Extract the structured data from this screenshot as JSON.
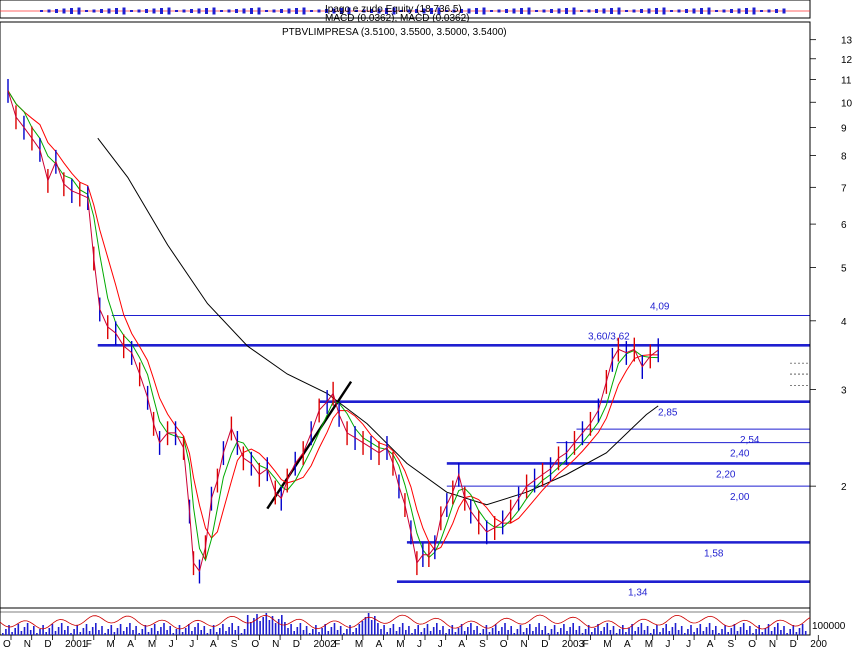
{
  "header": {
    "top_label": "Ipago e zudo Equity (18.736.5)",
    "macd_label": "MACD (0.0362), MACD (0.0362)",
    "ticker_label": "PTBVLIMPRESA (3.5100, 3.5500, 3.5000, 3.5400)"
  },
  "chart_data": {
    "type": "line",
    "title": "PTBVLIMPRESA (3.5100, 3.5500, 3.5000, 3.5400)",
    "y_scale": "log",
    "ylim": [
      1.2,
      14
    ],
    "x_start": "2000-10",
    "x_end": "2004-01",
    "y_ticks": [
      "13",
      "12",
      "11",
      "10",
      "9",
      "8",
      "7",
      "6",
      "5",
      "4",
      "3",
      "2"
    ],
    "x_ticks": [
      "O",
      "N",
      "D",
      "2001",
      "F",
      "M",
      "A",
      "M",
      "J",
      "J",
      "A",
      "S",
      "O",
      "N",
      "D",
      "2002",
      "F",
      "M",
      "A",
      "M",
      "J",
      "J",
      "A",
      "S",
      "O",
      "N",
      "D",
      "2003",
      "F",
      "M",
      "A",
      "M",
      "J",
      "J",
      "A",
      "S",
      "O",
      "N",
      "D",
      "200"
    ],
    "volume_label": "100000",
    "price": [
      [
        0,
        10.5
      ],
      [
        0.4,
        9.4
      ],
      [
        0.8,
        9.0
      ],
      [
        1.2,
        8.6
      ],
      [
        1.6,
        8.2
      ],
      [
        2.0,
        7.2
      ],
      [
        2.4,
        7.8
      ],
      [
        2.8,
        7.1
      ],
      [
        3.2,
        6.9
      ],
      [
        3.6,
        6.8
      ],
      [
        4.0,
        6.7
      ],
      [
        4.3,
        5.2
      ],
      [
        4.6,
        4.2
      ],
      [
        5.0,
        3.9
      ],
      [
        5.4,
        3.8
      ],
      [
        5.8,
        3.6
      ],
      [
        6.2,
        3.5
      ],
      [
        6.6,
        3.2
      ],
      [
        7.0,
        2.9
      ],
      [
        7.3,
        2.6
      ],
      [
        7.6,
        2.4
      ],
      [
        8.0,
        2.5
      ],
      [
        8.4,
        2.5
      ],
      [
        8.8,
        2.35
      ],
      [
        9.1,
        1.8
      ],
      [
        9.3,
        1.45
      ],
      [
        9.6,
        1.4
      ],
      [
        9.9,
        1.55
      ],
      [
        10.2,
        1.9
      ],
      [
        10.5,
        2.05
      ],
      [
        10.8,
        2.3
      ],
      [
        11.2,
        2.55
      ],
      [
        11.5,
        2.4
      ],
      [
        11.8,
        2.25
      ],
      [
        12.2,
        2.2
      ],
      [
        12.6,
        2.1
      ],
      [
        13.0,
        2.15
      ],
      [
        13.4,
        1.95
      ],
      [
        13.7,
        1.9
      ],
      [
        14.0,
        2.05
      ],
      [
        14.4,
        2.2
      ],
      [
        14.8,
        2.3
      ],
      [
        15.2,
        2.5
      ],
      [
        15.6,
        2.75
      ],
      [
        16.0,
        2.85
      ],
      [
        16.3,
        2.95
      ],
      [
        16.6,
        2.7
      ],
      [
        17.0,
        2.5
      ],
      [
        17.4,
        2.45
      ],
      [
        17.8,
        2.4
      ],
      [
        18.2,
        2.35
      ],
      [
        18.6,
        2.3
      ],
      [
        19.0,
        2.35
      ],
      [
        19.3,
        2.2
      ],
      [
        19.6,
        2.0
      ],
      [
        19.9,
        1.85
      ],
      [
        20.2,
        1.65
      ],
      [
        20.5,
        1.45
      ],
      [
        20.8,
        1.5
      ],
      [
        21.1,
        1.5
      ],
      [
        21.4,
        1.55
      ],
      [
        21.7,
        1.75
      ],
      [
        22.0,
        1.85
      ],
      [
        22.3,
        1.95
      ],
      [
        22.6,
        2.1
      ],
      [
        22.9,
        1.9
      ],
      [
        23.2,
        1.8
      ],
      [
        23.6,
        1.72
      ],
      [
        24.0,
        1.65
      ],
      [
        24.4,
        1.68
      ],
      [
        24.8,
        1.72
      ],
      [
        25.2,
        1.8
      ],
      [
        25.6,
        1.9
      ],
      [
        26.0,
        2.0
      ],
      [
        26.4,
        2.05
      ],
      [
        26.8,
        2.1
      ],
      [
        27.2,
        2.15
      ],
      [
        27.6,
        2.25
      ],
      [
        28.0,
        2.3
      ],
      [
        28.4,
        2.4
      ],
      [
        28.8,
        2.5
      ],
      [
        29.2,
        2.6
      ],
      [
        29.6,
        2.75
      ],
      [
        30.0,
        3.1
      ],
      [
        30.3,
        3.4
      ],
      [
        30.6,
        3.55
      ],
      [
        31.0,
        3.5
      ],
      [
        31.4,
        3.55
      ],
      [
        31.8,
        3.3
      ],
      [
        32.2,
        3.45
      ],
      [
        32.6,
        3.54
      ]
    ],
    "moving_average_long": [
      [
        4.5,
        8.6
      ],
      [
        6,
        7.3
      ],
      [
        8,
        5.5
      ],
      [
        10,
        4.3
      ],
      [
        12,
        3.6
      ],
      [
        14,
        3.2
      ],
      [
        16,
        2.95
      ],
      [
        18,
        2.6
      ],
      [
        20,
        2.2
      ],
      [
        22,
        1.95
      ],
      [
        24,
        1.85
      ],
      [
        26,
        1.95
      ],
      [
        28,
        2.1
      ],
      [
        30,
        2.3
      ],
      [
        32,
        2.7
      ],
      [
        32.6,
        2.8
      ]
    ],
    "support_resistance": [
      {
        "label": "4,09",
        "value": 4.09,
        "x_from": 5.2
      },
      {
        "label": "3,60/3,62",
        "value": 3.61,
        "x_from": 4.5
      },
      {
        "label": "2,85",
        "value": 2.85,
        "x_from": 15.6
      },
      {
        "label": "2,54",
        "value": 2.54,
        "x_from": 28.5
      },
      {
        "label": "2,40",
        "value": 2.4,
        "x_from": 27.5
      },
      {
        "label": "2,20",
        "value": 2.2,
        "x_from": 22.0
      },
      {
        "label": "2,00",
        "value": 2.0,
        "x_from": 22.0
      },
      {
        "label": "1,58",
        "value": 1.58,
        "x_from": 20.0
      },
      {
        "label": "1,34",
        "value": 1.34,
        "x_from": 19.5
      }
    ],
    "trendline": [
      [
        13.0,
        1.82
      ],
      [
        17.2,
        3.1
      ]
    ]
  }
}
